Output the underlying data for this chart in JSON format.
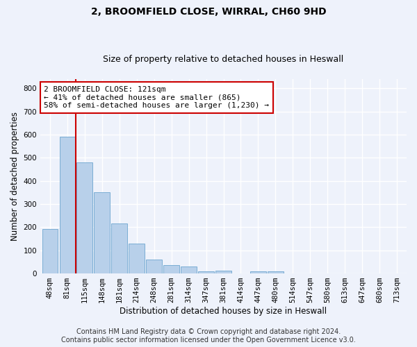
{
  "title_line1": "2, BROOMFIELD CLOSE, WIRRAL, CH60 9HD",
  "title_line2": "Size of property relative to detached houses in Heswall",
  "xlabel": "Distribution of detached houses by size in Heswall",
  "ylabel": "Number of detached properties",
  "bar_labels": [
    "48sqm",
    "81sqm",
    "115sqm",
    "148sqm",
    "181sqm",
    "214sqm",
    "248sqm",
    "281sqm",
    "314sqm",
    "347sqm",
    "381sqm",
    "414sqm",
    "447sqm",
    "480sqm",
    "514sqm",
    "547sqm",
    "580sqm",
    "613sqm",
    "647sqm",
    "680sqm",
    "713sqm"
  ],
  "bar_values": [
    192,
    590,
    480,
    350,
    215,
    130,
    60,
    35,
    30,
    10,
    12,
    0,
    10,
    10,
    0,
    0,
    0,
    0,
    0,
    0,
    0
  ],
  "bar_color": "#b8d0ea",
  "bar_edgecolor": "#7aadd4",
  "annotation_text": "2 BROOMFIELD CLOSE: 121sqm\n← 41% of detached houses are smaller (865)\n58% of semi-detached houses are larger (1,230) →",
  "annotation_box_color": "#ffffff",
  "annotation_box_edgecolor": "#cc0000",
  "vline_color": "#cc0000",
  "vline_x_index": 2,
  "ylim": [
    0,
    840
  ],
  "yticks": [
    0,
    100,
    200,
    300,
    400,
    500,
    600,
    700,
    800
  ],
  "footer_line1": "Contains HM Land Registry data © Crown copyright and database right 2024.",
  "footer_line2": "Contains public sector information licensed under the Open Government Licence v3.0.",
  "background_color": "#eef2fb",
  "plot_background": "#eef2fb",
  "grid_color": "#ffffff",
  "title_fontsize": 10,
  "subtitle_fontsize": 9,
  "axis_label_fontsize": 8.5,
  "tick_fontsize": 7.5,
  "annotation_fontsize": 8,
  "footer_fontsize": 7
}
